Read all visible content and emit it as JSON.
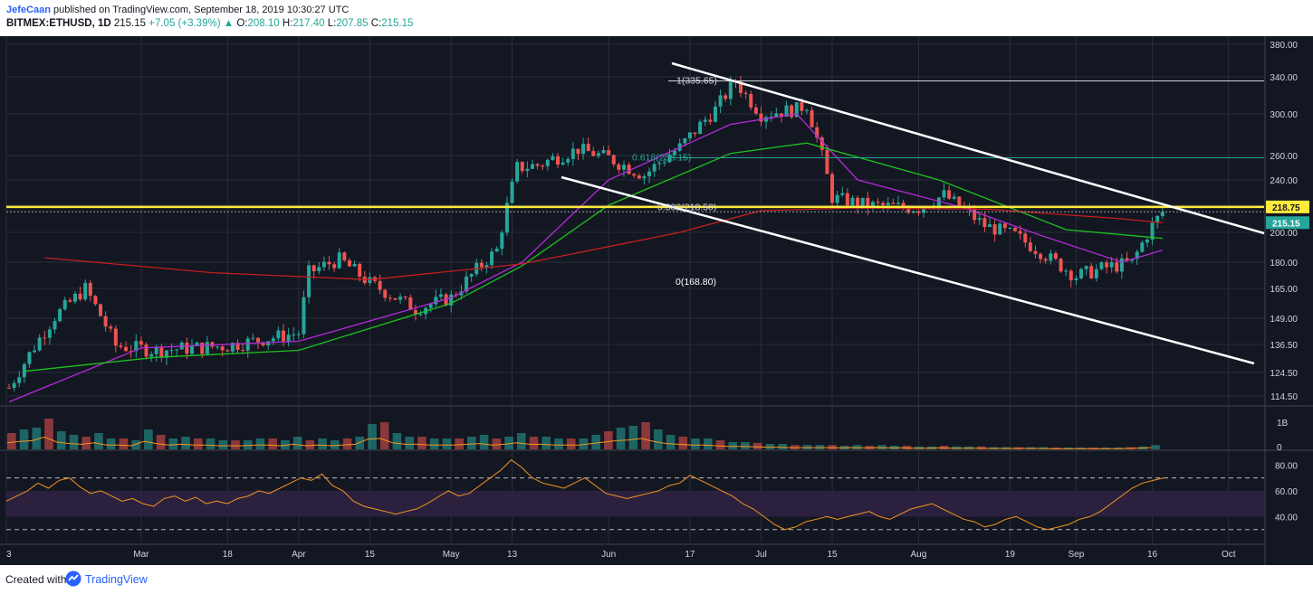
{
  "header": {
    "author": "JefeCaan",
    "published_text": "published on TradingView.com, September 18, 2019 10:30:27 UTC",
    "symbol": "BITMEX:ETHUSD, 1D",
    "last": "215.15",
    "change_arrow": "▲",
    "change": "+7.05 (+3.39%)",
    "o_label": "O:",
    "o_value": "208.10",
    "h_label": "H:",
    "h_value": "217.40",
    "l_label": "L:",
    "l_value": "207.85",
    "c_label": "C:",
    "c_value": "215.15"
  },
  "footer": {
    "created_with": "Created with",
    "brand": "TradingView"
  },
  "colors": {
    "background": "#131722",
    "grid": "#2a2e39",
    "up": "#26a69a",
    "down": "#ef5350",
    "ma_purple": "#b42ad8",
    "ma_green": "#1ec21e",
    "ma_red": "#c81e1e",
    "channel": "#ffffff",
    "resistance": "#ffeb3b",
    "fib_line": "#26a69a",
    "rsi_line": "#f7941d",
    "rsi_band": "#2b213f",
    "price_tag_yellow": "#ffeb3b",
    "price_tag_teal": "#26a69a"
  },
  "chart_data": {
    "type": "candlestick",
    "symbol": "BITMEX:ETHUSD",
    "timeframe": "1D",
    "y_ticks": [
      "380.00",
      "340.00",
      "300.00",
      "260.00",
      "240.00",
      "220.00",
      "200.00",
      "180.00",
      "165.00",
      "149.00",
      "136.50",
      "124.50",
      "114.50"
    ],
    "x_ticks": [
      "3",
      "Mar",
      "18",
      "Apr",
      "15",
      "May",
      "13",
      "Jun",
      "17",
      "Jul",
      "15",
      "Aug",
      "19",
      "Sep",
      "16",
      "Oct"
    ],
    "price_tags": {
      "resistance": "218.75",
      "last": "215.15"
    },
    "annotations": {
      "fib_1": "1(335.65)",
      "fib_0618": "0.618(258.15)",
      "fib_0382": "0.382(218.50)",
      "fib_0": "0(168.80)"
    },
    "volume_axis": [
      "1B",
      "0"
    ],
    "rsi_axis": [
      "80.00",
      "60.00",
      "40.00"
    ],
    "series": [
      {
        "name": "ETHUSD daily close (approx. keyframes)",
        "x": [
          "2019-02-03",
          "2019-02-12",
          "2019-02-18",
          "2019-02-24",
          "2019-03-04",
          "2019-03-18",
          "2019-04-01",
          "2019-04-03",
          "2019-04-09",
          "2019-04-15",
          "2019-04-24",
          "2019-05-01",
          "2019-05-10",
          "2019-05-14",
          "2019-05-18",
          "2019-05-26",
          "2019-06-01",
          "2019-06-08",
          "2019-06-15",
          "2019-06-22",
          "2019-06-26",
          "2019-06-28",
          "2019-07-01",
          "2019-07-08",
          "2019-07-10",
          "2019-07-15",
          "2019-07-22",
          "2019-08-01",
          "2019-08-06",
          "2019-08-14",
          "2019-08-20",
          "2019-08-28",
          "2019-09-01",
          "2019-09-07",
          "2019-09-12",
          "2019-09-16",
          "2019-09-18"
        ],
        "values": [
          118,
          150,
          165,
          136,
          134,
          136,
          142,
          174,
          182,
          168,
          154,
          160,
          188,
          250,
          252,
          266,
          258,
          244,
          268,
          305,
          336,
          320,
          300,
          305,
          310,
          226,
          220,
          218,
          228,
          205,
          198,
          180,
          172,
          177,
          180,
          205,
          215.15
        ]
      },
      {
        "name": "MA purple",
        "x": [
          "2019-02-03",
          "2019-03-01",
          "2019-04-01",
          "2019-05-01",
          "2019-05-15",
          "2019-06-01",
          "2019-06-25",
          "2019-07-08",
          "2019-07-20",
          "2019-08-10",
          "2019-08-25",
          "2019-09-10",
          "2019-09-18"
        ],
        "values": [
          112,
          135,
          138,
          160,
          180,
          240,
          290,
          300,
          240,
          218,
          198,
          180,
          188
        ]
      },
      {
        "name": "MA green",
        "x": [
          "2019-02-06",
          "2019-03-04",
          "2019-04-01",
          "2019-05-01",
          "2019-05-15",
          "2019-06-01",
          "2019-06-25",
          "2019-07-10",
          "2019-08-05",
          "2019-08-30",
          "2019-09-18"
        ],
        "values": [
          125,
          131,
          134,
          157,
          178,
          220,
          262,
          272,
          240,
          202,
          196
        ]
      },
      {
        "name": "MA red",
        "x": [
          "2019-02-10",
          "2019-03-15",
          "2019-04-15",
          "2019-05-15",
          "2019-06-15",
          "2019-07-01",
          "2019-07-20",
          "2019-08-15",
          "2019-09-10",
          "2019-09-18"
        ],
        "values": [
          183,
          174,
          170,
          179,
          200,
          216,
          218,
          217,
          210,
          207
        ]
      }
    ],
    "volume": [
      0.45,
      0.55,
      0.6,
      0.85,
      0.5,
      0.4,
      0.35,
      0.45,
      0.3,
      0.3,
      0.25,
      0.55,
      0.4,
      0.3,
      0.35,
      0.3,
      0.3,
      0.25,
      0.25,
      0.25,
      0.3,
      0.3,
      0.25,
      0.35,
      0.25,
      0.3,
      0.25,
      0.3,
      0.35,
      0.7,
      0.75,
      0.45,
      0.35,
      0.35,
      0.3,
      0.3,
      0.3,
      0.35,
      0.4,
      0.3,
      0.35,
      0.45,
      0.35,
      0.35,
      0.3,
      0.3,
      0.3,
      0.4,
      0.5,
      0.6,
      0.65,
      0.75,
      0.55,
      0.4,
      0.35,
      0.3,
      0.3,
      0.25,
      0.2,
      0.2,
      0.18,
      0.15,
      0.15,
      0.12,
      0.12,
      0.12,
      0.12,
      0.1,
      0.12,
      0.1,
      0.12,
      0.1,
      0.1,
      0.08,
      0.08,
      0.1,
      0.08,
      0.08,
      0.08,
      0.06,
      0.06,
      0.06,
      0.06,
      0.06,
      0.05,
      0.05,
      0.05,
      0.05,
      0.05,
      0.05,
      0.06,
      0.08,
      0.12
    ],
    "rsi": [
      52,
      56,
      60,
      66,
      62,
      68,
      70,
      63,
      58,
      60,
      56,
      52,
      54,
      50,
      48,
      54,
      56,
      52,
      55,
      50,
      52,
      50,
      54,
      56,
      60,
      58,
      62,
      66,
      70,
      68,
      73,
      64,
      60,
      52,
      48,
      46,
      44,
      42,
      44,
      46,
      50,
      55,
      60,
      56,
      58,
      64,
      70,
      76,
      84,
      78,
      70,
      66,
      64,
      62,
      66,
      70,
      64,
      58,
      56,
      54,
      56,
      58,
      60,
      64,
      66,
      72,
      68,
      64,
      60,
      56,
      50,
      46,
      40,
      34,
      30,
      32,
      36,
      38,
      40,
      38,
      40,
      42,
      44,
      40,
      38,
      42,
      46,
      48,
      50,
      46,
      42,
      38,
      36,
      32,
      34,
      38,
      40,
      36,
      32,
      30,
      32,
      34,
      38,
      40,
      44,
      50,
      56,
      62,
      66,
      68,
      70
    ]
  }
}
